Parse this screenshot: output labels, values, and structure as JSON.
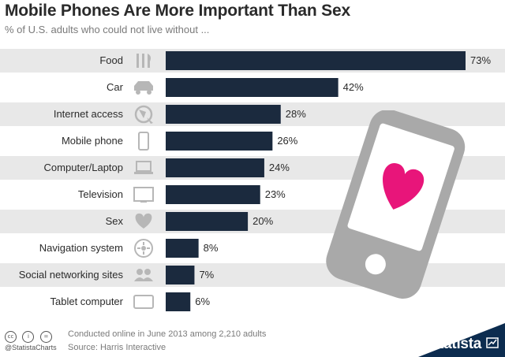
{
  "title": "Mobile Phones Are More Important Than Sex",
  "subtitle": "% of U.S. adults who could not live without ...",
  "colors": {
    "bar": "#1b2a3e",
    "band": "#e8e8e8",
    "icon": "#b7b7b7",
    "phone": "#a9a9a9",
    "heart": "#e8157a",
    "footer_blue": "#0c2c4f"
  },
  "chart_data": {
    "type": "bar",
    "orientation": "horizontal",
    "categories": [
      "Food",
      "Car",
      "Internet access",
      "Mobile phone",
      "Computer/Laptop",
      "Television",
      "Sex",
      "Navigation system",
      "Social networking sites",
      "Tablet computer"
    ],
    "values": [
      73,
      42,
      28,
      26,
      24,
      23,
      20,
      8,
      7,
      6
    ],
    "value_labels": [
      "73%",
      "42%",
      "28%",
      "26%",
      "24%",
      "23%",
      "20%",
      "8%",
      "7%",
      "6%"
    ],
    "icons": [
      "cutlery-icon",
      "car-icon",
      "globe-icon",
      "mobile-phone-icon",
      "laptop-icon",
      "television-icon",
      "heart-icon",
      "compass-icon",
      "people-icon",
      "tablet-icon"
    ],
    "xlim": [
      0,
      73
    ],
    "grid": false,
    "legend": "none"
  },
  "footer": {
    "note": "Conducted online in June 2013 among 2,210 adults",
    "source": "Source: Harris Interactive",
    "handle": "@StatistaCharts",
    "brand": "statista",
    "license_icons": [
      "cc",
      "i",
      "="
    ]
  }
}
